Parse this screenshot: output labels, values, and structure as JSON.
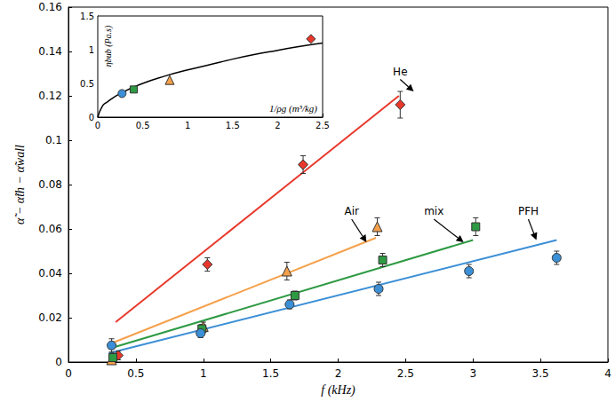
{
  "chart_data": [
    {
      "type": "scatter",
      "x_label": "f (kHz)",
      "y_label": "α̃ − α̃th − α̃wall",
      "xlim": [
        0,
        4
      ],
      "xticks": [
        0,
        0.5,
        1,
        1.5,
        2,
        2.5,
        3,
        3.5,
        4
      ],
      "ylim": [
        0,
        0.16
      ],
      "yticks": [
        0,
        0.02,
        0.04,
        0.06,
        0.08,
        0.1,
        0.12,
        0.14,
        0.16
      ],
      "grid": false,
      "series": [
        {
          "name": "He",
          "color": "#e8382c",
          "marker": "diamond",
          "x": [
            0.37,
            1.03,
            1.74,
            2.46
          ],
          "values": [
            0.003,
            0.044,
            0.089,
            0.116
          ],
          "errors": [
            0.002,
            0.003,
            0.004,
            0.006
          ],
          "fit": {
            "x": [
              0.35,
              2.45
            ],
            "values": [
              0.018,
              0.12
            ]
          },
          "annotation": {
            "x": 2.46,
            "y": 0.131,
            "arrow_to": [
              2.56,
              0.122
            ]
          }
        },
        {
          "name": "Air",
          "color": "#f5a04a",
          "marker": "triangle",
          "x": [
            0.32,
            1.0,
            1.62,
            2.29
          ],
          "values": [
            0.001,
            0.016,
            0.041,
            0.061
          ],
          "errors": [
            0.002,
            0.002,
            0.004,
            0.004
          ],
          "fit": {
            "x": [
              0.3,
              2.28
            ],
            "values": [
              0.008,
              0.056
            ]
          },
          "annotation": {
            "x": 2.1,
            "y": 0.068,
            "arrow_to": [
              2.21,
              0.054
            ]
          }
        },
        {
          "name": "mix",
          "color": "#2e9a43",
          "marker": "square",
          "x": [
            0.33,
            0.99,
            1.68,
            2.33,
            3.02
          ],
          "values": [
            0.002,
            0.015,
            0.03,
            0.046,
            0.061
          ],
          "errors": [
            0.002,
            0.002,
            0.002,
            0.003,
            0.004
          ],
          "fit": {
            "x": [
              0.3,
              3.0
            ],
            "values": [
              0.006,
              0.055
            ]
          },
          "annotation": {
            "x": 2.71,
            "y": 0.068,
            "arrow_to": [
              2.93,
              0.054
            ]
          }
        },
        {
          "name": "PFH",
          "color": "#3b8fd6",
          "marker": "circle",
          "x": [
            0.32,
            0.98,
            1.64,
            2.3,
            2.97,
            3.62
          ],
          "values": [
            0.0075,
            0.013,
            0.026,
            0.033,
            0.041,
            0.047
          ],
          "errors": [
            0.003,
            0.002,
            0.002,
            0.003,
            0.003,
            0.003
          ],
          "fit": {
            "x": [
              0.3,
              3.62
            ],
            "values": [
              0.004,
              0.055
            ]
          },
          "annotation": {
            "x": 3.41,
            "y": 0.068,
            "arrow_to": [
              3.47,
              0.055
            ]
          }
        }
      ]
    },
    {
      "type": "scatter",
      "x_label": "1/ρg (m³/kg)",
      "y_label": "ηbub (Pa.s)",
      "xlim": [
        0,
        2.5
      ],
      "xticks": [
        0,
        0.5,
        1,
        1.5,
        2,
        2.5
      ],
      "ylim": [
        0,
        1.5
      ],
      "yticks": [
        0,
        0.5,
        1,
        1.5
      ],
      "grid": false,
      "series": [
        {
          "type": "line",
          "color": "#000000",
          "line_style": "solid",
          "x": [
            0,
            0.05,
            0.1,
            0.25,
            0.5,
            0.75,
            1,
            1.25,
            1.5,
            1.75,
            2,
            2.25,
            2.5
          ],
          "values": [
            0,
            0.16,
            0.22,
            0.35,
            0.5,
            0.61,
            0.7,
            0.78,
            0.86,
            0.93,
            0.99,
            1.05,
            1.1
          ]
        },
        {
          "type": "scatter",
          "color": "#3b8fd6",
          "marker": "circle",
          "x": [
            0.27
          ],
          "values": [
            0.35
          ]
        },
        {
          "type": "scatter",
          "color": "#2e9a43",
          "marker": "square",
          "x": [
            0.4
          ],
          "values": [
            0.41
          ]
        },
        {
          "type": "scatter",
          "color": "#f5a04a",
          "marker": "triangle",
          "x": [
            0.8
          ],
          "values": [
            0.55
          ]
        },
        {
          "type": "scatter",
          "color": "#e8382c",
          "marker": "diamond",
          "x": [
            2.37
          ],
          "values": [
            1.16
          ]
        }
      ]
    }
  ]
}
